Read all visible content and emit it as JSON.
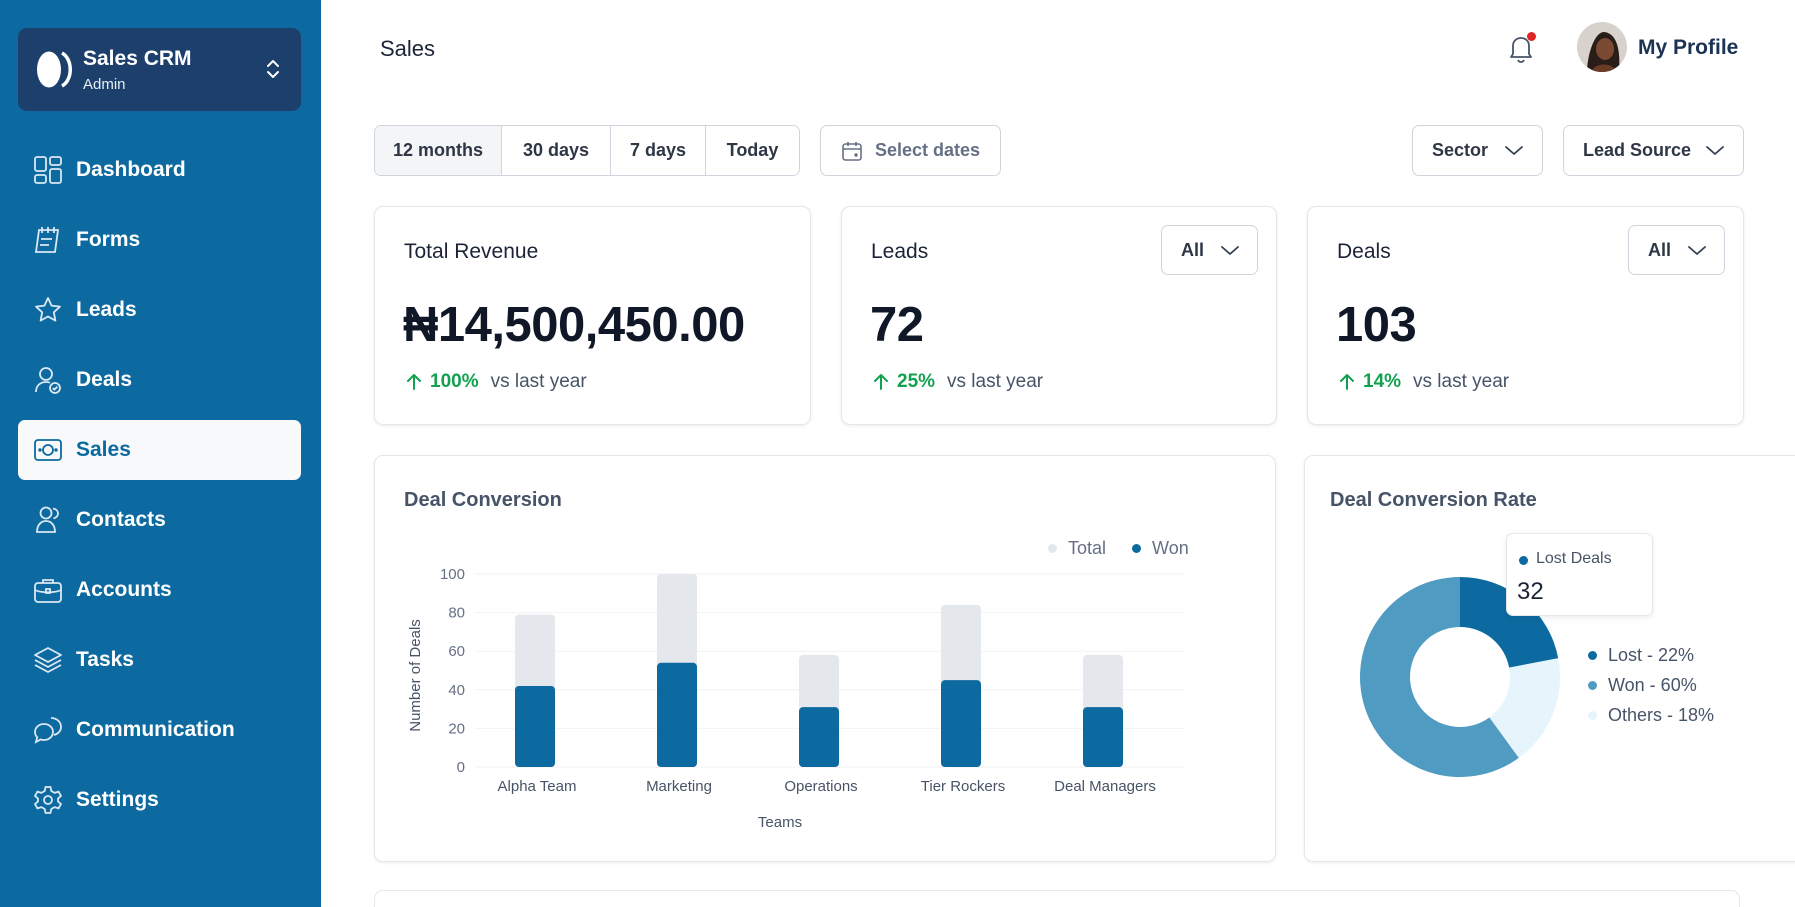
{
  "sidebar": {
    "brand_name": "Sales CRM",
    "brand_role": "Admin",
    "items": [
      {
        "label": "Dashboard",
        "icon": "dashboard-icon",
        "active": false
      },
      {
        "label": "Forms",
        "icon": "forms-icon",
        "active": false
      },
      {
        "label": "Leads",
        "icon": "star-icon",
        "active": false
      },
      {
        "label": "Deals",
        "icon": "user-check-icon",
        "active": false
      },
      {
        "label": "Sales",
        "icon": "cash-icon",
        "active": true
      },
      {
        "label": "Contacts",
        "icon": "users-icon",
        "active": false
      },
      {
        "label": "Accounts",
        "icon": "briefcase-icon",
        "active": false
      },
      {
        "label": "Tasks",
        "icon": "layers-icon",
        "active": false
      },
      {
        "label": "Communication",
        "icon": "chat-icon",
        "active": false
      },
      {
        "label": "Settings",
        "icon": "gear-icon",
        "active": false
      }
    ]
  },
  "header": {
    "title": "Sales",
    "profile_label": "My Profile"
  },
  "filters": {
    "ranges": [
      "12 months",
      "30 days",
      "7 days",
      "Today"
    ],
    "selected_range": "12 months",
    "date_placeholder": "Select dates",
    "sector_label": "Sector",
    "lead_source_label": "Lead Source"
  },
  "stats": {
    "revenue": {
      "title": "Total Revenue",
      "value": "₦14,500,450.00",
      "change": "100%",
      "vs": "vs last year"
    },
    "leads": {
      "title": "Leads",
      "value": "72",
      "change": "25%",
      "vs": "vs last year",
      "filter": "All"
    },
    "deals": {
      "title": "Deals",
      "value": "103",
      "change": "14%",
      "vs": "vs last year",
      "filter": "All"
    }
  },
  "colors": {
    "sidebar": "#0d6aa0",
    "brand_box": "#1d3f6b",
    "won": "#0d6aa0",
    "total": "#e4e7ec",
    "positive": "#12a150",
    "pie_lost": "#0d6aa0",
    "pie_won": "#4f9bc2",
    "pie_others": "#e6f4fc"
  },
  "deal_conversion": {
    "title": "Deal Conversion",
    "legend_total": "Total",
    "legend_won": "Won",
    "chart_data": {
      "type": "bar",
      "categories": [
        "Alpha Team",
        "Marketing",
        "Operations",
        "Tier Rockers",
        "Deal Managers"
      ],
      "series": [
        {
          "name": "Total",
          "values": [
            79,
            100,
            58,
            84,
            58
          ]
        },
        {
          "name": "Won",
          "values": [
            42,
            54,
            31,
            45,
            31
          ]
        }
      ],
      "yticks": [
        "0",
        "20",
        "40",
        "60",
        "80",
        "100"
      ],
      "ylim": [
        0,
        100
      ],
      "xlabel": "Teams",
      "ylabel": "Number of Deals",
      "grid": true,
      "legend": "top-right"
    }
  },
  "conversion_rate": {
    "title": "Deal Conversion Rate",
    "tooltip_label": "Lost Deals",
    "tooltip_value": "32",
    "chart_data": {
      "type": "pie",
      "slices": [
        {
          "label": "Lost - 22%",
          "value": 22
        },
        {
          "label": "Won - 60%",
          "value": 60
        },
        {
          "label": "Others - 18%",
          "value": 18
        }
      ],
      "legend": "right"
    }
  }
}
